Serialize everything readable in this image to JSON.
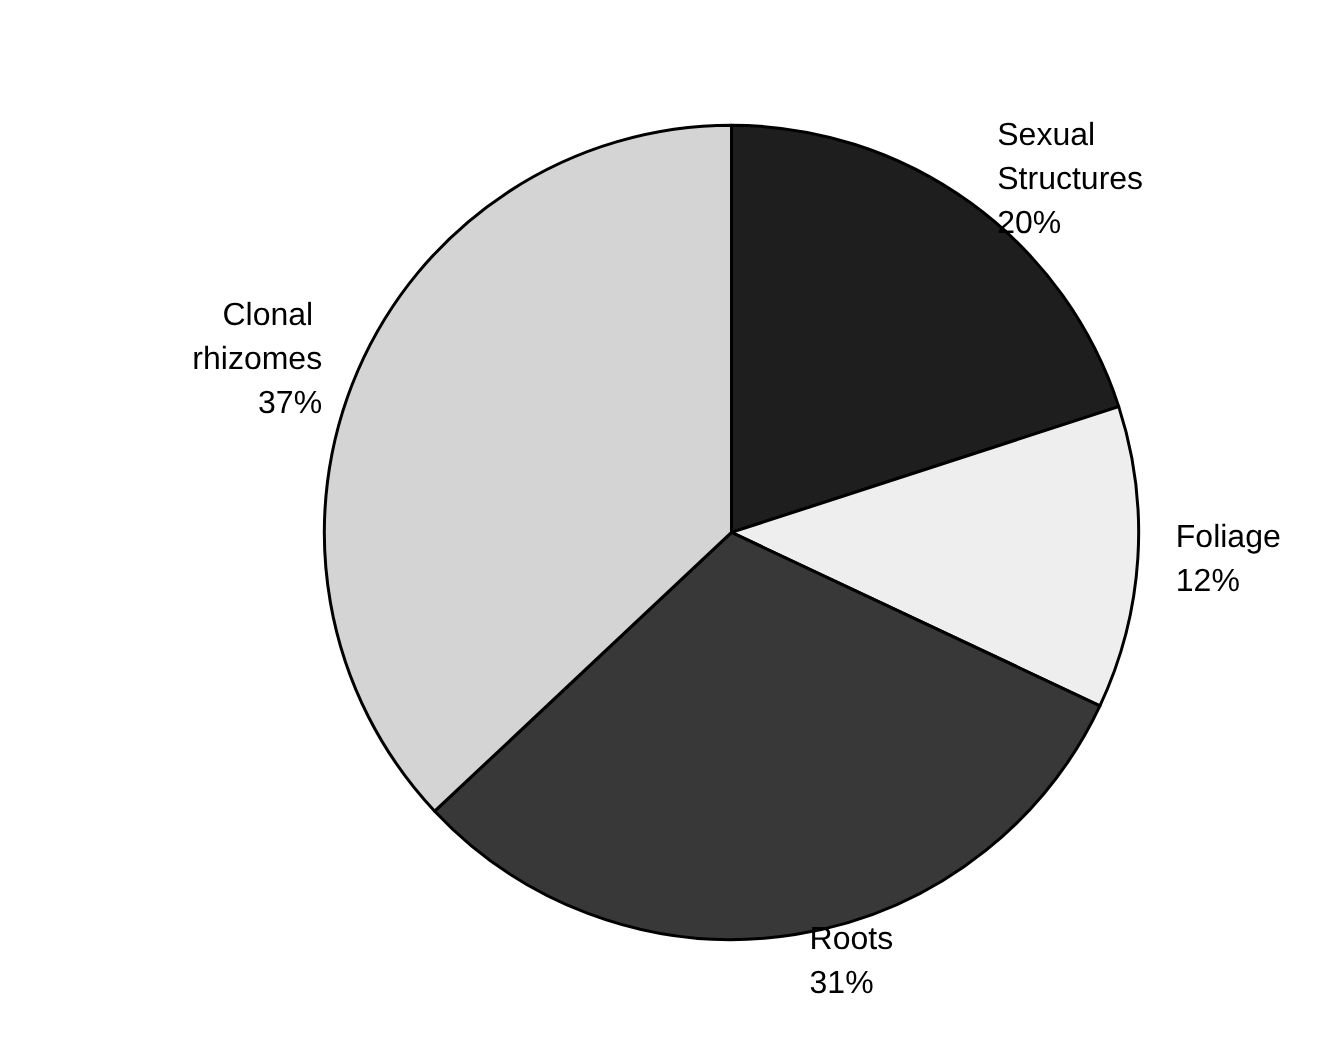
{
  "chart_data": {
    "type": "pie",
    "categories": [
      "Sexual Structures",
      "Foliage",
      "Roots",
      "Clonal rhizomes"
    ],
    "values": [
      20,
      12,
      31,
      37
    ],
    "colors": [
      "#1e1e1e",
      "#eeeeee",
      "#383838",
      "#d4d4d4"
    ],
    "value_labels": [
      "20%",
      "12%",
      "31%",
      "37%"
    ]
  }
}
